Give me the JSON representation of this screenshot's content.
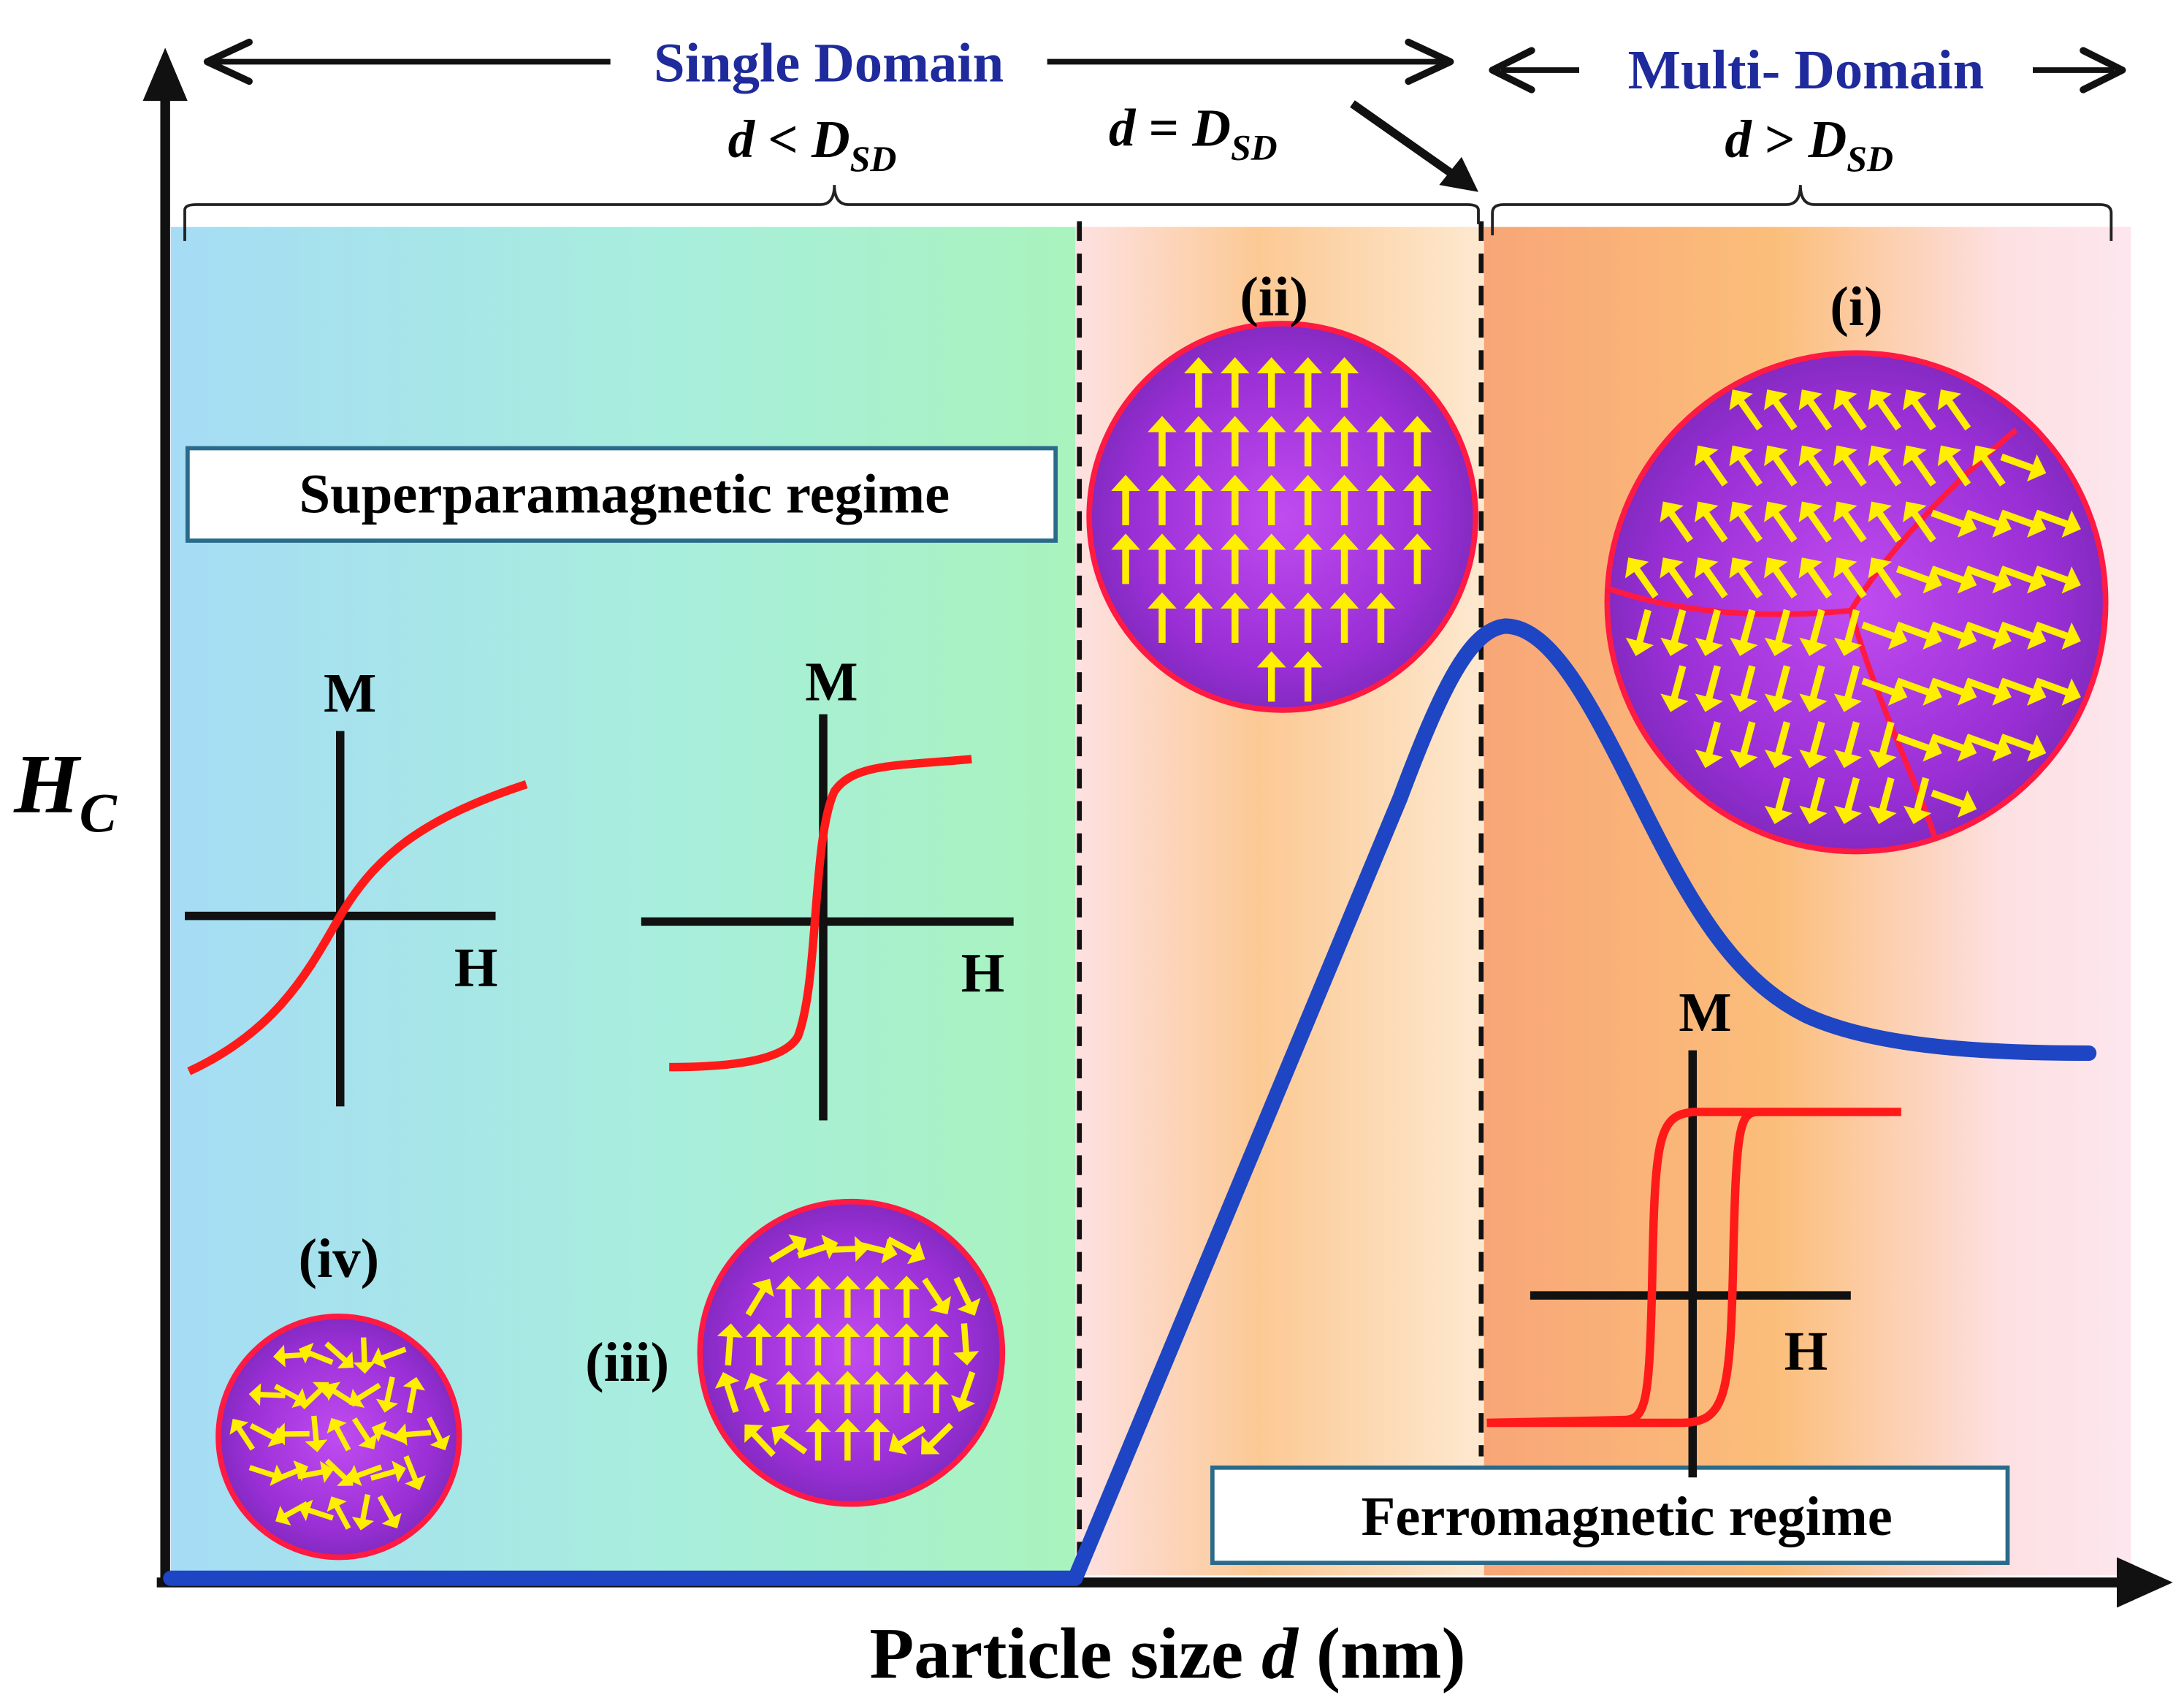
{
  "header": {
    "single_domain": "Single Domain",
    "multi_domain": "Multi- Domain",
    "cond_lt": {
      "d": "d",
      "op": " < ",
      "D": "D",
      "sub": "SD"
    },
    "cond_eq": {
      "d": "d",
      "op": " = ",
      "D": "D",
      "sub": "SD"
    },
    "cond_gt": {
      "d": "d",
      "op": " > ",
      "D": "D",
      "sub": "SD"
    }
  },
  "axes": {
    "y_label": "H",
    "y_label_sub": "C",
    "x_label_pre": "Particle size ",
    "x_label_var": "d",
    "x_label_post": " (nm)"
  },
  "regimes": {
    "superparamagnetic": "Superparamagnetic regime",
    "ferromagnetic": "Ferromagnetic regime"
  },
  "particles": {
    "i": "(i)",
    "ii": "(ii)",
    "iii": "(iii)",
    "iv": "(iv)"
  },
  "mh_plots": {
    "m_label": "M",
    "h_label": "H"
  },
  "colors": {
    "domain_text": "#1f2a9c",
    "coercivity_curve": "#1e45c4",
    "mh_curve": "#ff1a1a",
    "particle_fill": "#9b30d8",
    "particle_rim": "#ff1a44",
    "spin_arrow": "#ffee00",
    "region1_from": "#a8def5",
    "region1_to": "#a9f0c3",
    "region2": "#fce0d0",
    "region3": "#f7b07d"
  }
}
